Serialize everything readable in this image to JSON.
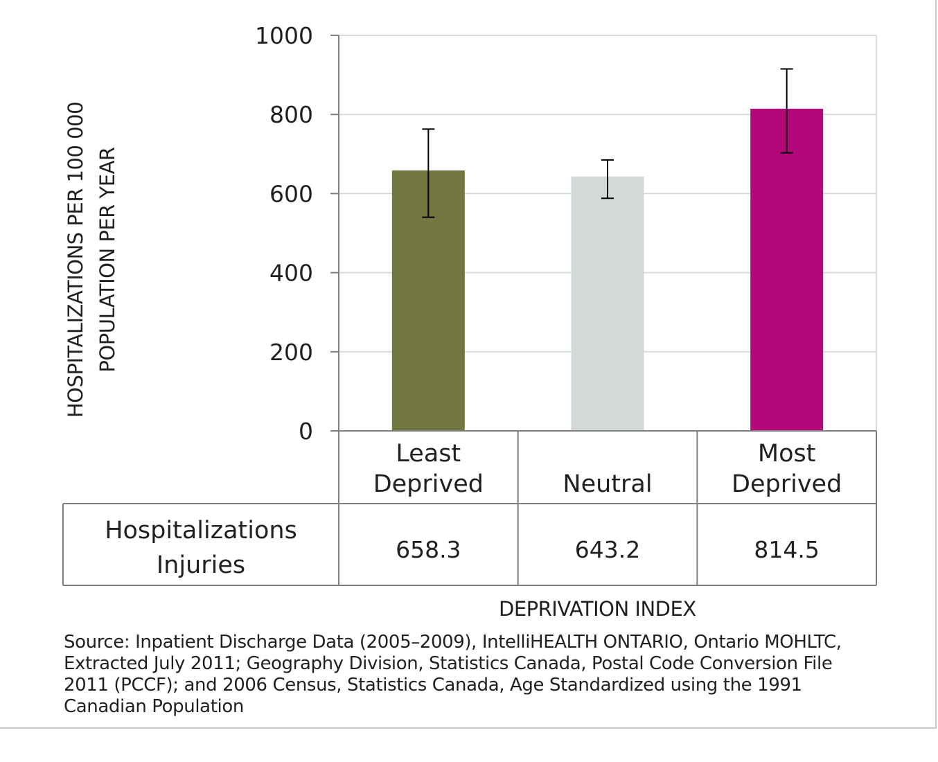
{
  "chart_data": {
    "type": "bar",
    "categories": [
      "Least Deprived",
      "Neutral",
      "Most Deprived"
    ],
    "category_lines": [
      [
        "Least",
        "Deprived"
      ],
      [
        "Neutral"
      ],
      [
        "Most",
        "Deprived"
      ]
    ],
    "series": [
      {
        "name": "Hospitalizations Injuries",
        "values": [
          658.3,
          643.2,
          814.5
        ],
        "error_low": [
          540,
          588,
          703
        ],
        "error_high": [
          763,
          685,
          915
        ]
      }
    ],
    "series_label_lines": [
      "Hospitalizations",
      "Injuries"
    ],
    "table_values": [
      "658.3",
      "643.2",
      "814.5"
    ],
    "ylabel": "HOSPITALIZATIONS PER 100 000 POPULATION PER YEAR",
    "xlabel": "DEPRIVATION INDEX",
    "ylim": [
      0,
      1000
    ],
    "yticks": [
      0,
      200,
      400,
      600,
      800,
      1000
    ],
    "grid": true,
    "colors": [
      "#737840",
      "#d2d9d8",
      "#b4087a"
    ]
  },
  "ylabel_lines": [
    "HOSPITALIZATIONS PER 100 000",
    "POPULATION PER YEAR"
  ],
  "source": "Source: Inpatient Discharge Data (2005–2009), IntelliHEALTH ONTARIO, Ontario MOHLTC, Extracted July 2011; Geography Division, Statistics Canada, Postal Code Conversion File 2011 (PCCF); and 2006 Census, Statistics Canada, Age Standardized using the 1991 Canadian Population"
}
